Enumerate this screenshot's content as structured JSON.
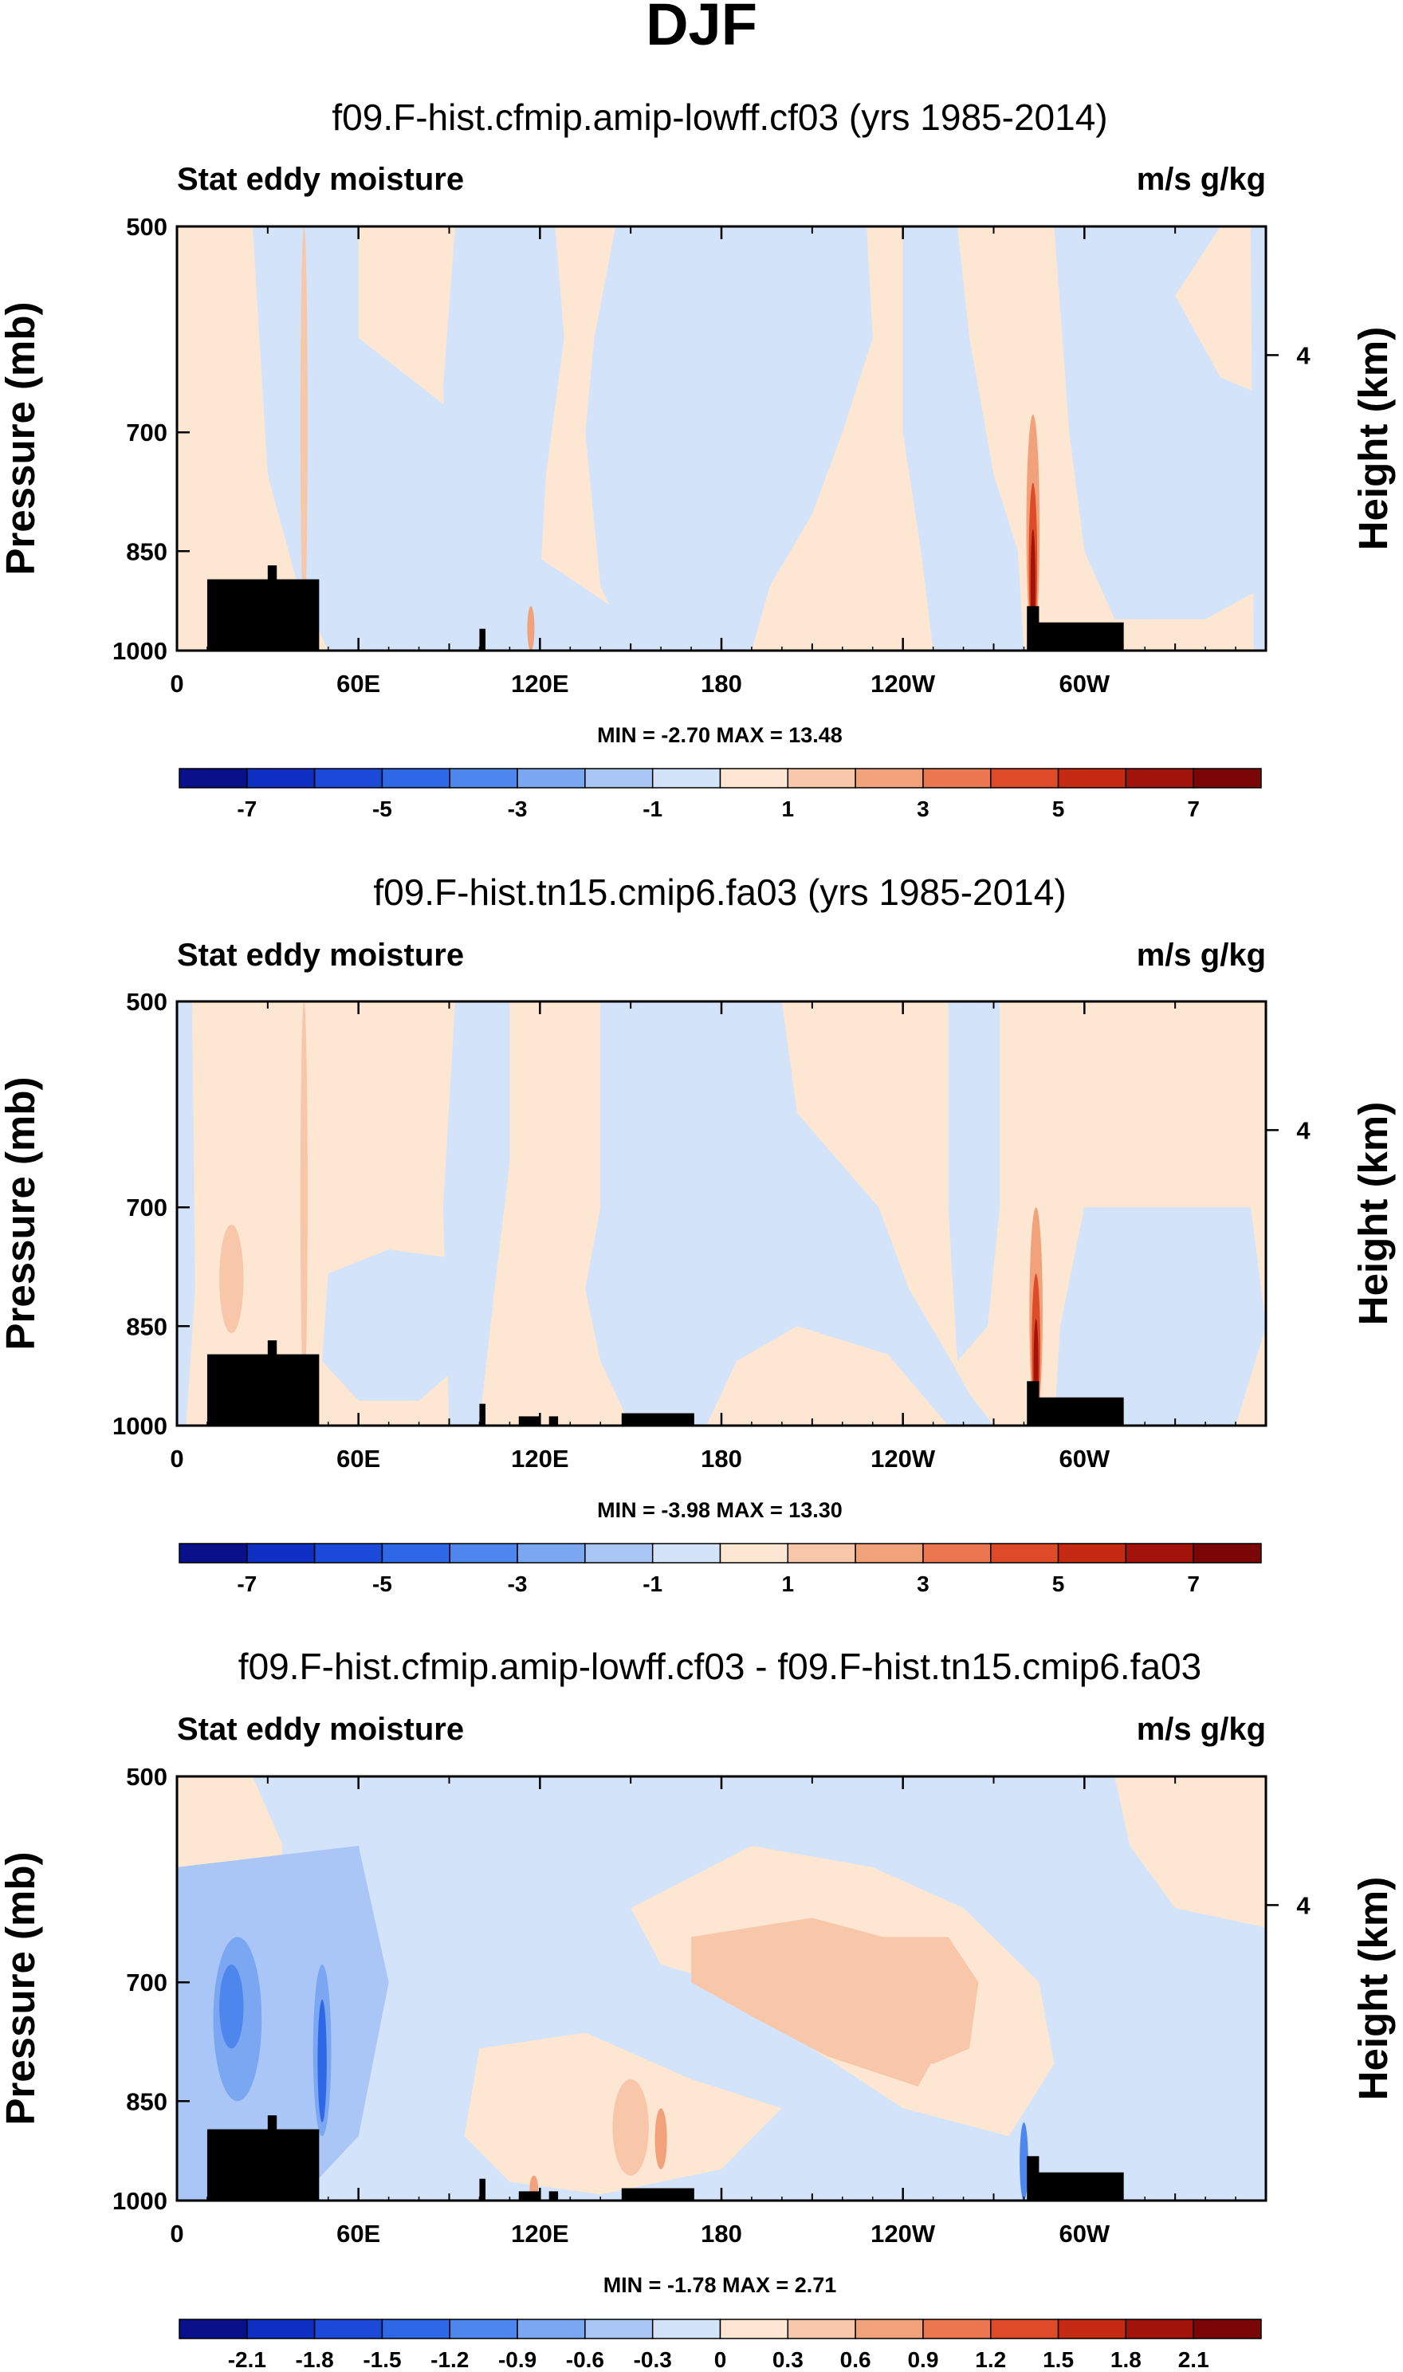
{
  "title": "DJF",
  "colorbars": {
    "full": {
      "colors": [
        "#08108a",
        "#0f2fc2",
        "#1c4ad8",
        "#2f68e6",
        "#4d86ec",
        "#7ba6f2",
        "#a9c6f6",
        "#d2e3fa",
        "#fde7d2",
        "#f8c7aa",
        "#f2a27a",
        "#ea7750",
        "#dd4b28",
        "#c52a12",
        "#a21409",
        "#7a0705"
      ],
      "labels": [
        "-7",
        "-5",
        "-3",
        "-1",
        "1",
        "3",
        "5",
        "7"
      ]
    },
    "diff": {
      "colors": [
        "#08108a",
        "#0f2fc2",
        "#1c4ad8",
        "#2f68e6",
        "#4d86ec",
        "#7ba6f2",
        "#a9c6f6",
        "#d2e3fa",
        "#fde7d2",
        "#f8c7aa",
        "#f2a27a",
        "#ea7750",
        "#dd4b28",
        "#c52a12",
        "#a21409",
        "#7a0705"
      ],
      "labels": [
        "-2.1",
        "-1.8",
        "-1.5",
        "-1.2",
        "-0.9",
        "-0.6",
        "-0.3",
        "0",
        "0.3",
        "0.6",
        "0.9",
        "1.2",
        "1.5",
        "1.8",
        "2.1"
      ]
    }
  },
  "panels": [
    {
      "title": "f09.F-hist.cfmip.amip-lowff.cf03 (yrs 1985-2014)",
      "left_string": "Stat eddy moisture",
      "right_string": "m/s g/kg",
      "min_label": "MIN =",
      "min": "-2.70",
      "max_label": "MAX =",
      "max": "13.48",
      "colorbar": "full"
    },
    {
      "title": "f09.F-hist.tn15.cmip6.fa03 (yrs 1985-2014)",
      "left_string": "Stat eddy moisture",
      "right_string": "m/s g/kg",
      "min_label": "MIN =",
      "min": "-3.98",
      "max_label": "MAX =",
      "max": "13.30",
      "colorbar": "full"
    },
    {
      "title": "f09.F-hist.cfmip.amip-lowff.cf03 - f09.F-hist.tn15.cmip6.fa03",
      "left_string": "Stat eddy moisture",
      "right_string": "m/s g/kg",
      "min_label": "MIN =",
      "min": "-1.78",
      "max_label": "MAX =",
      "max": "2.71",
      "colorbar": "diff"
    }
  ],
  "chart_data": {
    "type": "heatmap",
    "title": "DJF",
    "xlabel": "",
    "ylabel": "Pressure (mb)",
    "y2label": "Height (km)",
    "x_ticks": [
      "0",
      "60E",
      "120E",
      "180",
      "120W",
      "60W"
    ],
    "x_tick_lon": [
      0,
      60,
      120,
      180,
      240,
      300
    ],
    "xlim": [
      0,
      360
    ],
    "y_ticks": [
      "500",
      "700",
      "850",
      "1000"
    ],
    "y_tick_values": [
      500,
      700,
      850,
      1000
    ],
    "ylim": [
      500,
      1000
    ],
    "y2_ticks": [
      "4"
    ],
    "y2_tick_pressure": 617,
    "variable": "Stat eddy moisture",
    "units": "m/s g/kg",
    "series": [
      {
        "name": "f09.F-hist.cfmip.amip-lowff.cf03 (yrs 1985-2014)",
        "min": -2.7,
        "max": 13.48
      },
      {
        "name": "f09.F-hist.tn15.cmip6.fa03 (yrs 1985-2014)",
        "min": -3.98,
        "max": 13.3
      },
      {
        "name": "f09.F-hist.cfmip.amip-lowff.cf03 - f09.F-hist.tn15.cmip6.fa03",
        "min": -1.78,
        "max": 2.71
      }
    ],
    "colorbar_levels_full": [
      -7,
      -6,
      -5,
      -4,
      -3,
      -2,
      -1,
      0,
      1,
      2,
      3,
      4,
      5,
      6,
      7
    ],
    "colorbar_levels_diff": [
      -2.1,
      -1.8,
      -1.5,
      -1.2,
      -0.9,
      -0.6,
      -0.3,
      0,
      0.3,
      0.6,
      0.9,
      1.2,
      1.5,
      1.8,
      2.1
    ]
  }
}
